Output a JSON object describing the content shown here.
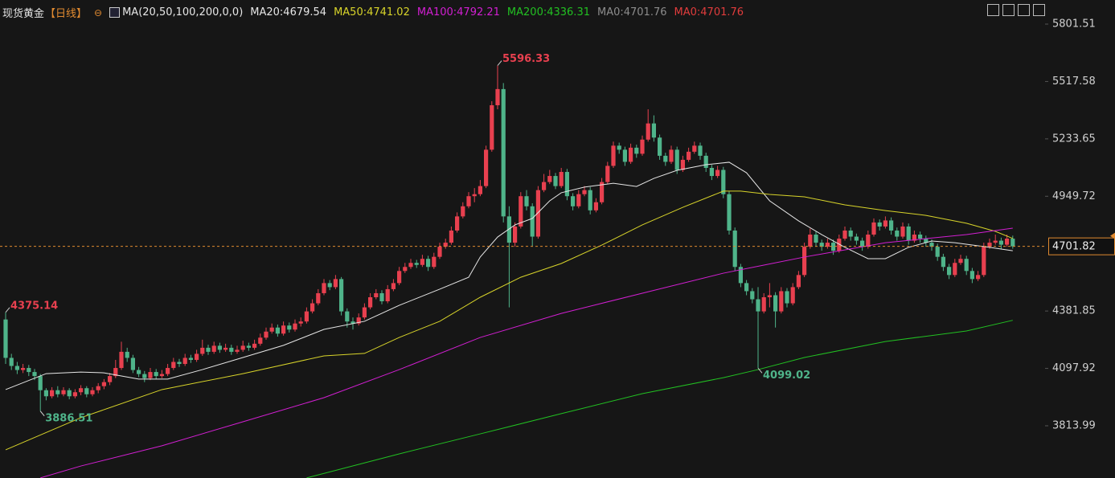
{
  "chart_data": {
    "type": "candlestick",
    "title": "现货黄金",
    "period": "【日线】",
    "ma_params": "MA(20,50,100,200,0,0)",
    "up_color": "#e8404f",
    "down_color": "#4fb48a",
    "ylim": [
      3555.6,
      5920.76
    ],
    "yticks": [
      5801.51,
      5517.58,
      5233.65,
      4949.72,
      4381.85,
      4097.92,
      3813.99
    ],
    "candles": [
      [
        4340,
        4375.14,
        4120,
        4150
      ],
      [
        4150,
        4170,
        4090,
        4110
      ],
      [
        4110,
        4130,
        4070,
        4090
      ],
      [
        4090,
        4120,
        4075,
        4100
      ],
      [
        4100,
        4115,
        4060,
        4080
      ],
      [
        4080,
        4095,
        4040,
        4060
      ],
      [
        4060,
        4070,
        3886.51,
        3990
      ],
      [
        3990,
        4000,
        3940,
        3960
      ],
      [
        3960,
        4005,
        3950,
        3990
      ],
      [
        3990,
        4010,
        3955,
        3970
      ],
      [
        3970,
        4005,
        3960,
        3990
      ],
      [
        3990,
        4000,
        3945,
        3960
      ],
      [
        3960,
        3995,
        3950,
        3980
      ],
      [
        3980,
        4015,
        3965,
        4000
      ],
      [
        4000,
        4010,
        3955,
        3970
      ],
      [
        3970,
        4005,
        3960,
        3990
      ],
      [
        3990,
        4025,
        3975,
        4010
      ],
      [
        4010,
        4045,
        3995,
        4030
      ],
      [
        4030,
        4075,
        4015,
        4060
      ],
      [
        4060,
        4140,
        4050,
        4100
      ],
      [
        4100,
        4230,
        4090,
        4180
      ],
      [
        4180,
        4200,
        4130,
        4150
      ],
      [
        4150,
        4165,
        4075,
        4090
      ],
      [
        4090,
        4105,
        4055,
        4070
      ],
      [
        4070,
        4085,
        4030,
        4050
      ],
      [
        4050,
        4100,
        4040,
        4080
      ],
      [
        4080,
        4095,
        4045,
        4060
      ],
      [
        4060,
        4090,
        4050,
        4070
      ],
      [
        4070,
        4120,
        4060,
        4100
      ],
      [
        4100,
        4150,
        4090,
        4130
      ],
      [
        4130,
        4145,
        4105,
        4120
      ],
      [
        4120,
        4170,
        4110,
        4150
      ],
      [
        4150,
        4165,
        4125,
        4140
      ],
      [
        4140,
        4190,
        4130,
        4170
      ],
      [
        4170,
        4240,
        4160,
        4200
      ],
      [
        4200,
        4215,
        4165,
        4180
      ],
      [
        4180,
        4230,
        4170,
        4210
      ],
      [
        4210,
        4225,
        4175,
        4190
      ],
      [
        4190,
        4220,
        4180,
        4200
      ],
      [
        4200,
        4215,
        4165,
        4180
      ],
      [
        4180,
        4210,
        4170,
        4190
      ],
      [
        4190,
        4235,
        4180,
        4210
      ],
      [
        4210,
        4225,
        4185,
        4200
      ],
      [
        4200,
        4240,
        4190,
        4220
      ],
      [
        4220,
        4270,
        4210,
        4250
      ],
      [
        4250,
        4300,
        4240,
        4280
      ],
      [
        4280,
        4320,
        4270,
        4300
      ],
      [
        4300,
        4315,
        4255,
        4270
      ],
      [
        4270,
        4330,
        4260,
        4310
      ],
      [
        4310,
        4325,
        4275,
        4290
      ],
      [
        4290,
        4340,
        4280,
        4320
      ],
      [
        4320,
        4350,
        4305,
        4330
      ],
      [
        4330,
        4400,
        4320,
        4380
      ],
      [
        4380,
        4440,
        4370,
        4420
      ],
      [
        4420,
        4490,
        4410,
        4470
      ],
      [
        4470,
        4540,
        4460,
        4520
      ],
      [
        4520,
        4535,
        4485,
        4500
      ],
      [
        4500,
        4560,
        4490,
        4540
      ],
      [
        4540,
        4550,
        4360,
        4380
      ],
      [
        4380,
        4395,
        4300,
        4330
      ],
      [
        4330,
        4350,
        4290,
        4320
      ],
      [
        4320,
        4370,
        4310,
        4350
      ],
      [
        4350,
        4420,
        4340,
        4400
      ],
      [
        4400,
        4470,
        4390,
        4450
      ],
      [
        4450,
        4490,
        4440,
        4470
      ],
      [
        4470,
        4485,
        4415,
        4430
      ],
      [
        4430,
        4510,
        4420,
        4490
      ],
      [
        4490,
        4540,
        4480,
        4520
      ],
      [
        4520,
        4600,
        4510,
        4580
      ],
      [
        4580,
        4620,
        4570,
        4600
      ],
      [
        4600,
        4640,
        4590,
        4620
      ],
      [
        4620,
        4635,
        4595,
        4610
      ],
      [
        4610,
        4660,
        4600,
        4640
      ],
      [
        4640,
        4655,
        4580,
        4600
      ],
      [
        4600,
        4670,
        4590,
        4650
      ],
      [
        4650,
        4720,
        4640,
        4700
      ],
      [
        4700,
        4740,
        4690,
        4720
      ],
      [
        4720,
        4800,
        4710,
        4780
      ],
      [
        4780,
        4870,
        4770,
        4850
      ],
      [
        4850,
        4920,
        4840,
        4900
      ],
      [
        4900,
        4970,
        4890,
        4950
      ],
      [
        4950,
        4990,
        4920,
        4960
      ],
      [
        4960,
        5030,
        4950,
        5000
      ],
      [
        5000,
        5200,
        4990,
        5180
      ],
      [
        5180,
        5420,
        5170,
        5400
      ],
      [
        5400,
        5596.33,
        5380,
        5480
      ],
      [
        5480,
        5510,
        4820,
        4850
      ],
      [
        4850,
        4900,
        4400,
        4720
      ],
      [
        4720,
        4820,
        4700,
        4800
      ],
      [
        4800,
        4970,
        4790,
        4950
      ],
      [
        4950,
        4980,
        4880,
        4900
      ],
      [
        4900,
        4915,
        4700,
        4750
      ],
      [
        4750,
        5000,
        4740,
        4980
      ],
      [
        4980,
        5060,
        4970,
        5020
      ],
      [
        5020,
        5080,
        5010,
        5050
      ],
      [
        5050,
        5065,
        4985,
        5000
      ],
      [
        5000,
        5090,
        4990,
        5070
      ],
      [
        5070,
        5085,
        4930,
        4950
      ],
      [
        4950,
        4965,
        4880,
        4900
      ],
      [
        4900,
        4980,
        4890,
        4960
      ],
      [
        4960,
        5000,
        4950,
        4980
      ],
      [
        4980,
        4995,
        4860,
        4880
      ],
      [
        4880,
        4940,
        4870,
        4920
      ],
      [
        4920,
        5040,
        4910,
        5020
      ],
      [
        5020,
        5120,
        5010,
        5100
      ],
      [
        5100,
        5220,
        5090,
        5200
      ],
      [
        5200,
        5215,
        5160,
        5180
      ],
      [
        5180,
        5195,
        5100,
        5120
      ],
      [
        5120,
        5210,
        5110,
        5190
      ],
      [
        5190,
        5205,
        5140,
        5160
      ],
      [
        5160,
        5250,
        5150,
        5230
      ],
      [
        5230,
        5380,
        5220,
        5310
      ],
      [
        5310,
        5350,
        5220,
        5240
      ],
      [
        5240,
        5255,
        5130,
        5150
      ],
      [
        5150,
        5165,
        5100,
        5120
      ],
      [
        5120,
        5200,
        5110,
        5180
      ],
      [
        5180,
        5195,
        5060,
        5080
      ],
      [
        5080,
        5150,
        5070,
        5130
      ],
      [
        5130,
        5190,
        5120,
        5170
      ],
      [
        5170,
        5220,
        5160,
        5200
      ],
      [
        5200,
        5215,
        5130,
        5150
      ],
      [
        5150,
        5165,
        5070,
        5090
      ],
      [
        5090,
        5105,
        5030,
        5050
      ],
      [
        5050,
        5100,
        5040,
        5080
      ],
      [
        5080,
        5095,
        4940,
        4960
      ],
      [
        4960,
        4975,
        4760,
        4780
      ],
      [
        4780,
        4795,
        4580,
        4600
      ],
      [
        4600,
        4615,
        4500,
        4520
      ],
      [
        4520,
        4535,
        4460,
        4480
      ],
      [
        4480,
        4495,
        4420,
        4440
      ],
      [
        4440,
        4500,
        4099.02,
        4380
      ],
      [
        4380,
        4470,
        4370,
        4450
      ],
      [
        4450,
        4520,
        4400,
        4460
      ],
      [
        4460,
        4475,
        4300,
        4380
      ],
      [
        4380,
        4500,
        4370,
        4480
      ],
      [
        4480,
        4495,
        4400,
        4420
      ],
      [
        4420,
        4520,
        4410,
        4500
      ],
      [
        4500,
        4580,
        4490,
        4560
      ],
      [
        4560,
        4720,
        4550,
        4700
      ],
      [
        4700,
        4790,
        4690,
        4760
      ],
      [
        4760,
        4775,
        4700,
        4720
      ],
      [
        4720,
        4735,
        4680,
        4700
      ],
      [
        4700,
        4740,
        4690,
        4720
      ],
      [
        4720,
        4735,
        4660,
        4680
      ],
      [
        4680,
        4760,
        4670,
        4740
      ],
      [
        4740,
        4800,
        4730,
        4780
      ],
      [
        4780,
        4795,
        4730,
        4750
      ],
      [
        4750,
        4765,
        4710,
        4730
      ],
      [
        4730,
        4745,
        4680,
        4700
      ],
      [
        4700,
        4780,
        4690,
        4760
      ],
      [
        4760,
        4840,
        4750,
        4820
      ],
      [
        4820,
        4835,
        4780,
        4800
      ],
      [
        4800,
        4850,
        4790,
        4830
      ],
      [
        4830,
        4845,
        4760,
        4780
      ],
      [
        4780,
        4795,
        4730,
        4750
      ],
      [
        4750,
        4820,
        4740,
        4800
      ],
      [
        4800,
        4815,
        4710,
        4730
      ],
      [
        4730,
        4780,
        4720,
        4760
      ],
      [
        4760,
        4775,
        4720,
        4740
      ],
      [
        4740,
        4755,
        4700,
        4720
      ],
      [
        4720,
        4735,
        4680,
        4700
      ],
      [
        4700,
        4715,
        4630,
        4650
      ],
      [
        4650,
        4665,
        4580,
        4600
      ],
      [
        4600,
        4615,
        4540,
        4560
      ],
      [
        4560,
        4640,
        4550,
        4620
      ],
      [
        4620,
        4660,
        4610,
        4640
      ],
      [
        4640,
        4655,
        4560,
        4580
      ],
      [
        4580,
        4595,
        4520,
        4540
      ],
      [
        4540,
        4580,
        4530,
        4560
      ],
      [
        4560,
        4720,
        4550,
        4700
      ],
      [
        4700,
        4740,
        4690,
        4720
      ],
      [
        4720,
        4760,
        4710,
        4730
      ],
      [
        4730,
        4745,
        4690,
        4710
      ],
      [
        4710,
        4760,
        4700,
        4740
      ],
      [
        4740,
        4755,
        4690,
        4701.82
      ]
    ],
    "ma_lines": [
      {
        "name": "MA20:4679.54",
        "color": "#e6e6e6",
        "x": [
          0,
          7,
          13,
          17,
          23,
          28,
          34,
          41,
          48,
          55,
          62,
          68,
          75,
          80,
          82,
          85,
          88,
          91,
          94,
          96,
          100,
          105,
          109,
          112,
          116,
          121,
          125,
          128,
          132,
          137,
          141,
          145,
          149,
          152,
          156,
          160,
          164,
          170,
          174
        ],
        "values": [
          3993,
          4072,
          4080,
          4076,
          4045,
          4045,
          4092,
          4152,
          4212,
          4291,
          4331,
          4410,
          4490,
          4549,
          4649,
          4748,
          4808,
          4840,
          4927,
          4967,
          4995,
          5014,
          4998,
          5038,
          5078,
          5106,
          5118,
          5066,
          4927,
          4828,
          4760,
          4697,
          4641,
          4641,
          4697,
          4728,
          4720,
          4697,
          4680
        ]
      },
      {
        "name": "MA50:4741.02",
        "color": "#d8d42a",
        "x": [
          0,
          13,
          27,
          41,
          55,
          62,
          68,
          75,
          82,
          89,
          96,
          103,
          110,
          117,
          124,
          127,
          132,
          138,
          145,
          152,
          159,
          166,
          171,
          174
        ],
        "values": [
          3695,
          3854,
          3993,
          4072,
          4160,
          4172,
          4251,
          4331,
          4450,
          4549,
          4617,
          4708,
          4808,
          4895,
          4975,
          4975,
          4959,
          4947,
          4907,
          4879,
          4855,
          4816,
          4776,
          4741
        ]
      },
      {
        "name": "MA100:4792.21",
        "color": "#d21fd2",
        "x": [
          6,
          13,
          27,
          41,
          55,
          68,
          82,
          96,
          110,
          124,
          131,
          138,
          152,
          166,
          174
        ],
        "values": [
          3556,
          3615,
          3715,
          3834,
          3953,
          4092,
          4251,
          4370,
          4470,
          4569,
          4609,
          4649,
          4720,
          4760,
          4792
        ]
      },
      {
        "name": "MA200:4336.31",
        "color": "#22c022",
        "x": [
          52,
          68,
          82,
          96,
          110,
          124,
          130,
          138,
          152,
          166,
          174
        ],
        "values": [
          3556,
          3675,
          3774,
          3874,
          3973,
          4052,
          4092,
          4152,
          4231,
          4283,
          4336
        ]
      }
    ],
    "legend_extra": [
      {
        "name": "MA0:4701.76",
        "color": "#8c8c8c"
      },
      {
        "name": "MA0:4701.76",
        "color": "#e03c3c"
      }
    ],
    "high_labels": [
      {
        "candle": 0,
        "color": "#e8404f"
      },
      {
        "candle": 85,
        "color": "#e8404f"
      }
    ],
    "low_labels": [
      {
        "candle": 6,
        "color": "#4fb48a"
      },
      {
        "candle": 130,
        "color": "#4fb48a"
      }
    ],
    "price_line_color": "#e08a30"
  }
}
